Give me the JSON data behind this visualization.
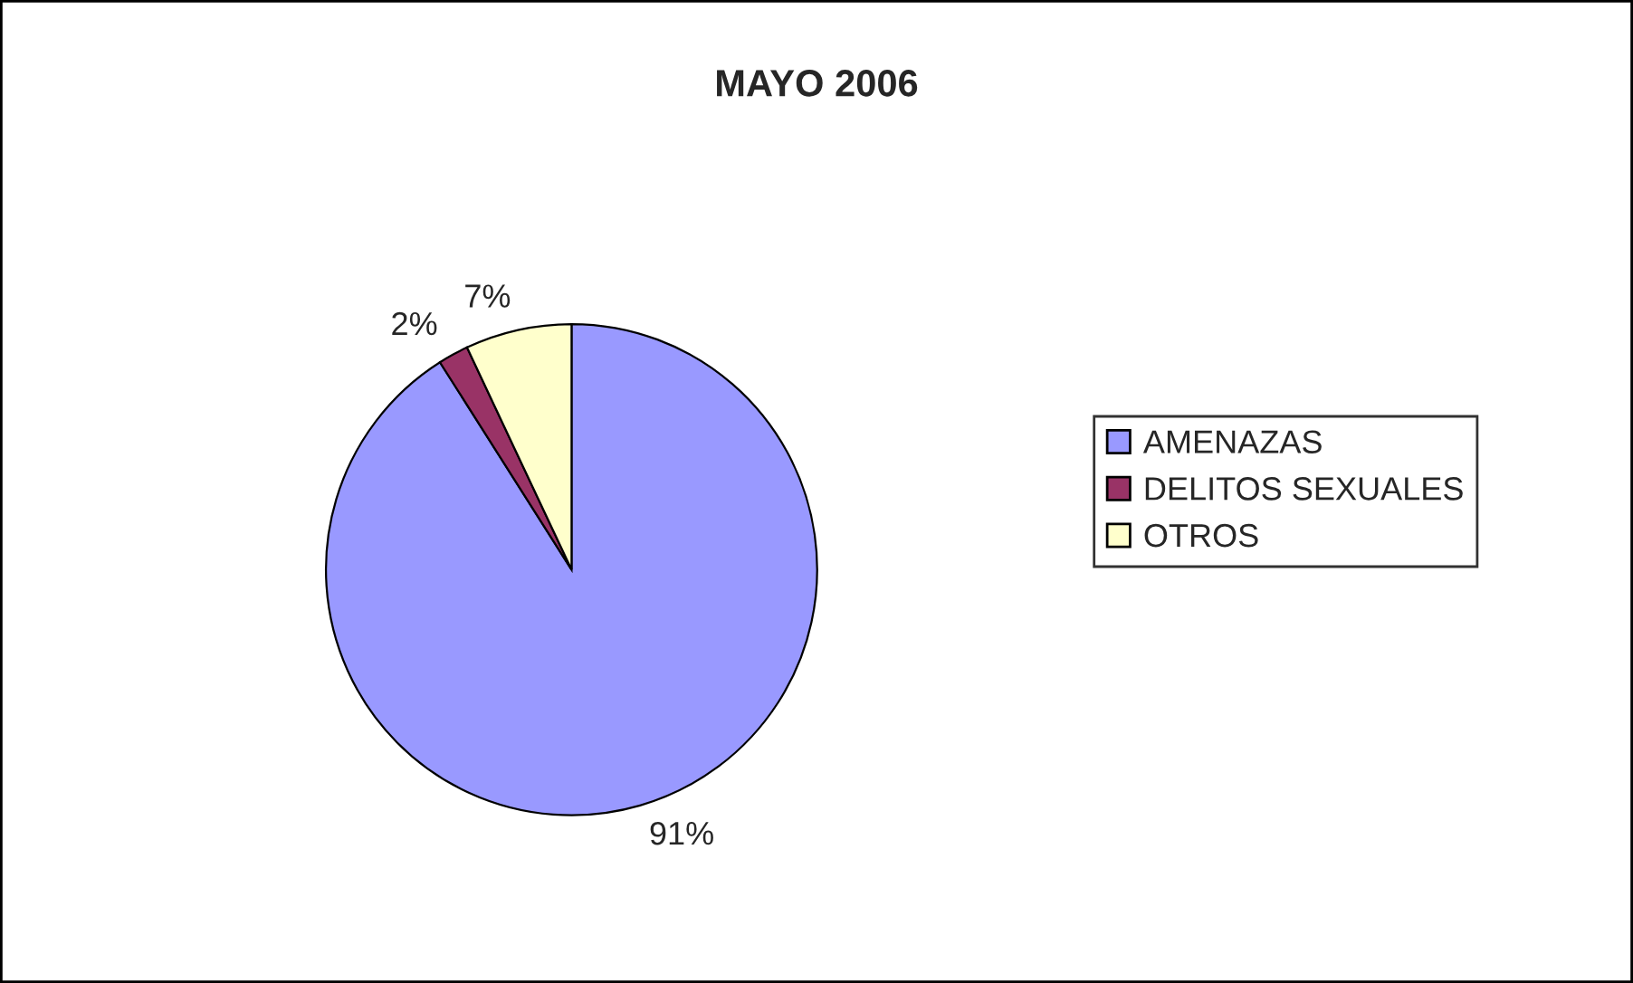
{
  "chart_data": {
    "type": "pie",
    "title": "MAYO 2006",
    "categories": [
      "AMENAZAS",
      "DELITOS SEXUALES",
      "OTROS"
    ],
    "values": [
      91,
      2,
      7
    ],
    "colors": [
      "#9999ff",
      "#993366",
      "#ffffcc"
    ],
    "value_labels": [
      "91%",
      "2%",
      "7%"
    ],
    "legend": "right"
  }
}
